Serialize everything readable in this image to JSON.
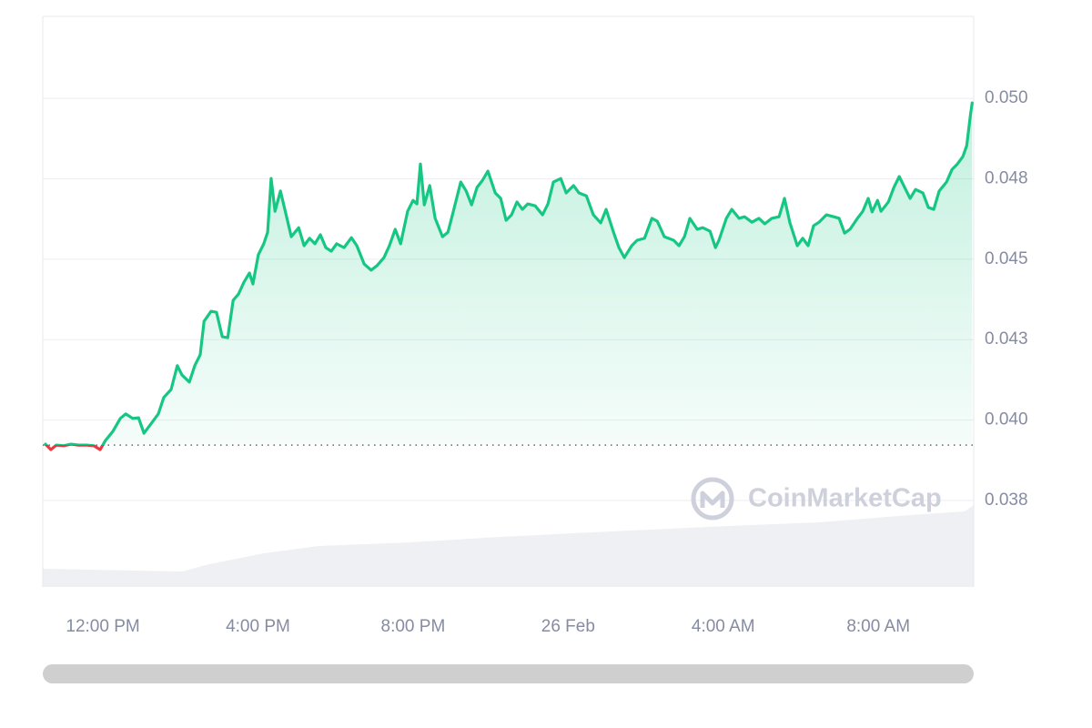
{
  "chart_data": {
    "type": "line",
    "x": [
      10.52,
      10.66,
      10.8,
      10.99,
      11.18,
      11.37,
      11.58,
      11.77,
      11.93,
      12.07,
      12.26,
      12.45,
      12.59,
      12.77,
      12.92,
      13.06,
      13.24,
      13.43,
      13.57,
      13.76,
      13.92,
      14.04,
      14.23,
      14.37,
      14.51,
      14.61,
      14.79,
      14.93,
      15.08,
      15.22,
      15.36,
      15.5,
      15.64,
      15.78,
      15.87,
      16.01,
      16.15,
      16.25,
      16.34,
      16.44,
      16.58,
      16.72,
      16.86,
      17.05,
      17.19,
      17.33,
      17.47,
      17.61,
      17.75,
      17.89,
      18.03,
      18.22,
      18.41,
      18.55,
      18.74,
      18.92,
      19.07,
      19.25,
      19.39,
      19.54,
      19.68,
      19.86,
      20.0,
      20.1,
      20.19,
      20.29,
      20.43,
      20.57,
      20.76,
      20.9,
      21.04,
      21.23,
      21.37,
      21.51,
      21.65,
      21.79,
      21.93,
      22.12,
      22.26,
      22.4,
      22.54,
      22.68,
      22.82,
      22.96,
      23.15,
      23.34,
      23.48,
      23.62,
      23.81,
      23.95,
      24.14,
      24.28,
      24.47,
      24.65,
      24.84,
      24.98,
      25.17,
      25.31,
      25.45,
      25.64,
      25.78,
      25.97,
      26.16,
      26.3,
      26.48,
      26.72,
      26.86,
      27.0,
      27.14,
      27.33,
      27.47,
      27.66,
      27.8,
      27.89,
      28.08,
      28.22,
      28.41,
      28.55,
      28.74,
      28.92,
      29.07,
      29.25,
      29.44,
      29.58,
      29.72,
      29.91,
      30.05,
      30.19,
      30.33,
      30.47,
      30.66,
      30.85,
      30.99,
      31.13,
      31.27,
      31.46,
      31.6,
      31.74,
      31.84,
      31.98,
      32.07,
      32.26,
      32.4,
      32.54,
      32.68,
      32.82,
      32.96,
      33.15,
      33.29,
      33.43,
      33.57,
      33.76,
      33.9,
      34.04,
      34.18,
      34.28,
      34.37,
      34.42
    ],
    "values": [
      0.03925,
      0.03908,
      0.03922,
      0.0392,
      0.03925,
      0.03922,
      0.03922,
      0.0392,
      0.03908,
      0.03937,
      0.03965,
      0.04005,
      0.04019,
      0.04005,
      0.04007,
      0.03959,
      0.03988,
      0.04019,
      0.0407,
      0.04095,
      0.04169,
      0.0414,
      0.04118,
      0.04169,
      0.04203,
      0.04307,
      0.04338,
      0.04335,
      0.04259,
      0.04256,
      0.04372,
      0.04392,
      0.04429,
      0.04457,
      0.04423,
      0.04514,
      0.04548,
      0.04584,
      0.04751,
      0.04649,
      0.04712,
      0.04641,
      0.0457,
      0.04598,
      0.04542,
      0.04565,
      0.04548,
      0.04576,
      0.04536,
      0.04525,
      0.04548,
      0.04536,
      0.04567,
      0.04542,
      0.04485,
      0.04466,
      0.0448,
      0.04505,
      0.04542,
      0.04593,
      0.04548,
      0.04649,
      0.04683,
      0.04672,
      0.04796,
      0.04669,
      0.04729,
      0.04627,
      0.0457,
      0.04584,
      0.04649,
      0.0474,
      0.04712,
      0.04669,
      0.04723,
      0.04745,
      0.04774,
      0.04706,
      0.04689,
      0.04621,
      0.04638,
      0.04678,
      0.04655,
      0.04672,
      0.04666,
      0.04638,
      0.04672,
      0.0474,
      0.04751,
      0.04706,
      0.04729,
      0.04706,
      0.04697,
      0.04638,
      0.04613,
      0.04655,
      0.04584,
      0.04536,
      0.04505,
      0.04542,
      0.04559,
      0.04565,
      0.04627,
      0.04618,
      0.0457,
      0.04559,
      0.04542,
      0.0457,
      0.04627,
      0.04593,
      0.04598,
      0.04587,
      0.04536,
      0.04559,
      0.04627,
      0.04655,
      0.04627,
      0.04632,
      0.04615,
      0.04627,
      0.0461,
      0.04627,
      0.04632,
      0.04689,
      0.04613,
      0.04542,
      0.04565,
      0.04542,
      0.04604,
      0.04615,
      0.04638,
      0.04632,
      0.04627,
      0.04581,
      0.04593,
      0.04627,
      0.04649,
      0.04689,
      0.04647,
      0.04683,
      0.04649,
      0.04678,
      0.04723,
      0.04757,
      0.04723,
      0.04689,
      0.04717,
      0.04706,
      0.04661,
      0.04655,
      0.04712,
      0.0474,
      0.04779,
      0.04796,
      0.04819,
      0.04853,
      0.04943,
      0.04986
    ],
    "xlim": [
      10.45,
      34.46
    ],
    "ylim": [
      0.03481,
      0.05255
    ],
    "xticks": [
      {
        "value": 12,
        "label": "12:00 PM"
      },
      {
        "value": 16,
        "label": "4:00 PM"
      },
      {
        "value": 20,
        "label": "8:00 PM"
      },
      {
        "value": 24,
        "label": "26 Feb"
      },
      {
        "value": 28,
        "label": "4:00 AM"
      },
      {
        "value": 32,
        "label": "8:00 AM"
      }
    ],
    "yticks": [
      {
        "value": 0.0375,
        "label": "0.038"
      },
      {
        "value": 0.04,
        "label": "0.040"
      },
      {
        "value": 0.0425,
        "label": "0.043"
      },
      {
        "value": 0.045,
        "label": "0.045"
      },
      {
        "value": 0.0475,
        "label": "0.048"
      },
      {
        "value": 0.05,
        "label": "0.050"
      }
    ],
    "baseline": 0.03922,
    "up_color": "#16c784",
    "down_color": "#ea3943",
    "grid": true,
    "watermark": "CoinMarketCap"
  }
}
